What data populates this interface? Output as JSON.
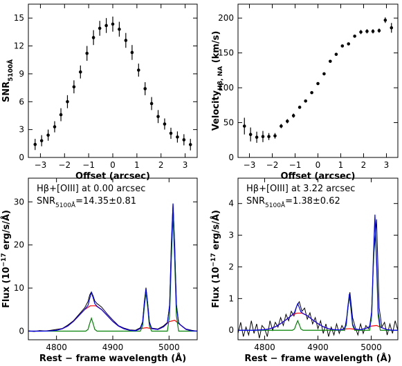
{
  "chart_data": [
    {
      "type": "scatter",
      "color": "#000000",
      "x": [
        -3.22,
        -2.95,
        -2.68,
        -2.41,
        -2.15,
        -1.88,
        -1.61,
        -1.34,
        -1.07,
        -0.8,
        -0.54,
        -0.27,
        0,
        0.27,
        0.54,
        0.8,
        1.07,
        1.34,
        1.61,
        1.88,
        2.15,
        2.41,
        2.68,
        2.95,
        3.22
      ],
      "values": [
        1.4,
        1.8,
        2.4,
        3.3,
        4.6,
        6.0,
        7.6,
        9.2,
        11.2,
        12.9,
        13.9,
        14.2,
        14.35,
        13.8,
        12.6,
        11.3,
        9.4,
        7.4,
        5.8,
        4.4,
        3.6,
        2.6,
        2.2,
        1.9,
        1.38
      ],
      "errors": [
        0.6,
        0.6,
        0.6,
        0.6,
        0.7,
        0.7,
        0.7,
        0.7,
        0.8,
        0.8,
        0.8,
        0.8,
        0.81,
        0.8,
        0.8,
        0.8,
        0.7,
        0.7,
        0.7,
        0.7,
        0.6,
        0.6,
        0.6,
        0.6,
        0.62
      ],
      "xlim": [
        -3.5,
        3.5
      ],
      "ylim": [
        0,
        16.5
      ],
      "xticks": [
        {
          "value": -3,
          "label": "−3"
        },
        {
          "value": -2,
          "label": "−2"
        },
        {
          "value": -1,
          "label": "−1"
        },
        0,
        1,
        2,
        3
      ],
      "yticks": [
        0,
        3,
        6,
        9,
        12,
        15
      ],
      "xlabel": "Offset (arcsec)",
      "ylabel": [
        {
          "text": "SNR"
        },
        {
          "text": "5100Å",
          "style": "sub"
        }
      ]
    },
    {
      "type": "scatter",
      "color": "#000000",
      "x": [
        -3.22,
        -2.95,
        -2.68,
        -2.41,
        -2.15,
        -1.88,
        -1.61,
        -1.34,
        -1.07,
        -0.8,
        -0.54,
        -0.27,
        0,
        0.27,
        0.54,
        0.8,
        1.07,
        1.34,
        1.61,
        1.88,
        2.15,
        2.41,
        2.68,
        2.95,
        3.22
      ],
      "values": [
        45,
        33,
        29,
        30,
        30,
        31,
        45,
        52,
        60,
        72,
        81,
        93,
        106,
        120,
        138,
        148,
        160,
        163,
        174,
        180,
        181,
        181,
        182,
        197,
        186
      ],
      "errors": [
        12,
        10,
        8,
        8,
        5,
        4,
        3,
        3,
        3,
        2,
        2,
        2,
        2,
        2,
        2,
        2,
        2,
        2,
        2,
        3,
        3,
        3,
        3,
        4,
        7
      ],
      "xlim": [
        -3.5,
        3.5
      ],
      "ylim": [
        0,
        220
      ],
      "xticks": [
        {
          "value": -3,
          "label": "−3"
        },
        {
          "value": -2,
          "label": "−2"
        },
        {
          "value": -1,
          "label": "−1"
        },
        0,
        1,
        2,
        3
      ],
      "yticks": [
        0,
        50,
        100,
        150,
        200
      ],
      "xlabel": "Offset (arcsec)",
      "ylabel": [
        {
          "text": "Velocity"
        },
        {
          "text": "Hβ, NA",
          "style": "sub"
        },
        {
          "text": " (km/s)"
        }
      ]
    },
    {
      "type": "line",
      "xlim": [
        4750,
        5050
      ],
      "ylim": [
        -2,
        35.5
      ],
      "xticks": [
        4800,
        4900,
        5000
      ],
      "yticks": [
        0,
        10,
        20,
        30
      ],
      "xlabel": "Rest − frame wavelength (Å)",
      "ylabel": [
        {
          "text": "Flux (10"
        },
        {
          "text": "−17",
          "style": "super"
        },
        {
          "text": " erg/s/Å)"
        }
      ],
      "annotations": [
        [
          {
            "text": "Hβ+[OIII] at 0.00 arcsec"
          }
        ],
        [
          {
            "text": "SNR"
          },
          {
            "text": "5100Å",
            "style": "sub"
          },
          {
            "text": "=14.35±0.81"
          }
        ]
      ],
      "series": [
        {
          "color": "#000000",
          "x": [
            4750,
            4760,
            4770,
            4780,
            4790,
            4800,
            4810,
            4820,
            4830,
            4840,
            4850,
            4856,
            4859,
            4862,
            4865,
            4868,
            4872,
            4880,
            4890,
            4900,
            4910,
            4920,
            4930,
            4940,
            4949,
            4953,
            4956,
            4959,
            4962,
            4965,
            4969,
            4980,
            4990,
            4997,
            5001,
            5004,
            5007,
            5010,
            5013,
            5017,
            5020,
            5030,
            5040,
            5050
          ],
          "values": [
            0.1,
            -0.1,
            0.15,
            0.05,
            0.2,
            0.4,
            0.6,
            1.4,
            2.4,
            3.9,
            5.4,
            6.9,
            8.4,
            9.1,
            8.2,
            7.0,
            6.4,
            5.6,
            4.0,
            2.6,
            1.3,
            0.7,
            0.3,
            0.2,
            0.8,
            2.2,
            6.8,
            10.1,
            6.6,
            2.2,
            0.7,
            0.5,
            1.2,
            2.0,
            6.2,
            20.5,
            29.6,
            20.0,
            6.4,
            2.0,
            1.5,
            0.5,
            0.2,
            0.0
          ]
        },
        {
          "color": "#ff0000",
          "x": [
            4750,
            4760,
            4770,
            4780,
            4790,
            4800,
            4810,
            4820,
            4830,
            4840,
            4850,
            4860,
            4870,
            4880,
            4890,
            4900,
            4910,
            4920,
            4930,
            4940,
            4950,
            4960,
            4970,
            4980,
            4990,
            5000,
            5010,
            5020,
            5030,
            5040,
            5050
          ],
          "values": [
            0,
            0,
            0,
            0.02,
            0.07,
            0.2,
            0.53,
            1.19,
            2.25,
            3.64,
            5.01,
            5.88,
            5.88,
            5.01,
            3.64,
            2.25,
            1.19,
            0.53,
            0.2,
            0.07,
            0.62,
            0.8,
            0.55,
            0.38,
            0.98,
            2.19,
            2.52,
            1.45,
            0.41,
            0.06,
            0.01
          ]
        },
        {
          "color": "#008000",
          "x": [
            4750,
            4852,
            4856,
            4859,
            4862,
            4865,
            4868,
            4872,
            4949,
            4953,
            4956,
            4959,
            4962,
            4965,
            4969,
            4997,
            5001,
            5004,
            5007,
            5010,
            5013,
            5017,
            5050
          ],
          "values": [
            0,
            0,
            0.4,
            1.8,
            3,
            1.8,
            0.4,
            0,
            0,
            1.2,
            5.5,
            9,
            5.5,
            1.2,
            0,
            0,
            3.6,
            16.4,
            27,
            16.4,
            3.6,
            0,
            0
          ]
        },
        {
          "color": "#0000ff",
          "x": [
            4750,
            4760,
            4770,
            4780,
            4790,
            4800,
            4810,
            4820,
            4830,
            4840,
            4850,
            4856,
            4859,
            4862,
            4865,
            4868,
            4872,
            4880,
            4890,
            4900,
            4910,
            4920,
            4930,
            4940,
            4949,
            4953,
            4956,
            4959,
            4962,
            4965,
            4969,
            4980,
            4990,
            4997,
            5001,
            5004,
            5007,
            5010,
            5013,
            5017,
            5020,
            5030,
            5040,
            5050
          ],
          "values": [
            0,
            0,
            0,
            0.02,
            0.07,
            0.2,
            0.53,
            1.19,
            2.25,
            3.64,
            5.01,
            6.0,
            7.6,
            8.96,
            7.8,
            6.4,
            5.77,
            5.01,
            3.64,
            2.25,
            1.19,
            0.53,
            0.2,
            0.07,
            0.59,
            1.9,
            6.3,
            9.8,
            6.3,
            1.9,
            0.57,
            0.38,
            0.98,
            1.84,
            5.9,
            19.0,
            29.6,
            19.0,
            5.9,
            1.84,
            1.45,
            0.41,
            0.06,
            0.01
          ]
        }
      ]
    },
    {
      "type": "line",
      "xlim": [
        4750,
        5050
      ],
      "ylim": [
        -0.3,
        4.8
      ],
      "xticks": [
        4800,
        4900,
        5000
      ],
      "yticks": [
        0,
        1,
        2,
        3,
        4
      ],
      "xlabel": "Rest − frame wavelength (Å)",
      "ylabel": [
        {
          "text": "Flux (10"
        },
        {
          "text": "−17",
          "style": "super"
        },
        {
          "text": " erg/s/Å)"
        }
      ],
      "annotations": [
        [
          {
            "text": "Hβ+[OIII] at 3.22 arcsec"
          }
        ],
        [
          {
            "text": "SNR"
          },
          {
            "text": "5100Å",
            "style": "sub"
          },
          {
            "text": "=1.38±0.62"
          }
        ]
      ],
      "series": [
        {
          "color": "#000000",
          "x": [
            4750,
            4755,
            4760,
            4765,
            4770,
            4775,
            4780,
            4785,
            4790,
            4795,
            4800,
            4805,
            4810,
            4815,
            4820,
            4825,
            4830,
            4835,
            4840,
            4845,
            4850,
            4855,
            4860,
            4865,
            4870,
            4875,
            4880,
            4885,
            4890,
            4895,
            4900,
            4905,
            4910,
            4915,
            4920,
            4925,
            4930,
            4935,
            4940,
            4945,
            4950,
            4955,
            4960,
            4965,
            4970,
            4975,
            4980,
            4985,
            4990,
            4995,
            5000,
            5005,
            5010,
            5015,
            5020,
            5025,
            5030,
            5035,
            5040,
            5045,
            5050
          ],
          "values": [
            -0.1,
            0.25,
            -0.2,
            0.1,
            -0.15,
            0.3,
            -0.1,
            0.2,
            -0.25,
            0.15,
            0.05,
            -0.2,
            0.3,
            0.0,
            0.25,
            0.1,
            0.4,
            0.15,
            0.5,
            0.3,
            0.6,
            0.45,
            0.75,
            0.9,
            0.6,
            0.7,
            0.35,
            0.55,
            0.2,
            0.4,
            0.05,
            0.3,
            -0.1,
            0.2,
            -0.2,
            0.1,
            -0.15,
            0.2,
            -0.1,
            0.15,
            0.0,
            0.5,
            1.2,
            0.4,
            0.1,
            -0.15,
            0.2,
            -0.1,
            0.15,
            0.05,
            0.3,
            2.4,
            3.5,
            0.7,
            0.1,
            0.25,
            -0.15,
            0.2,
            -0.1,
            0.3,
            0.0
          ]
        },
        {
          "color": "#ff0000",
          "x": [
            4750,
            4760,
            4770,
            4780,
            4790,
            4800,
            4810,
            4820,
            4830,
            4840,
            4850,
            4860,
            4870,
            4880,
            4890,
            4900,
            4910,
            4920,
            4930,
            4940,
            4950,
            4960,
            4970,
            4980,
            4990,
            5000,
            5010,
            5020,
            5030,
            5040,
            5050
          ],
          "values": [
            0,
            0,
            0,
            0,
            0.01,
            0.02,
            0.05,
            0.11,
            0.21,
            0.33,
            0.46,
            0.54,
            0.54,
            0.46,
            0.33,
            0.21,
            0.11,
            0.05,
            0.02,
            0.01,
            0.04,
            0.05,
            0.03,
            0.02,
            0.06,
            0.13,
            0.15,
            0.08,
            0.02,
            0,
            0
          ]
        },
        {
          "color": "#008000",
          "x": [
            4750,
            4852,
            4856,
            4859,
            4862,
            4865,
            4868,
            4872,
            4949,
            4953,
            4956,
            4959,
            4962,
            4965,
            4969,
            4997,
            5001,
            5004,
            5007,
            5010,
            5013,
            5017,
            5050
          ],
          "values": [
            0,
            0,
            0.04,
            0.18,
            0.3,
            0.18,
            0.04,
            0,
            0,
            0.15,
            0.67,
            1.1,
            0.67,
            0.15,
            0,
            0,
            0.47,
            2.12,
            3.5,
            2.12,
            0.47,
            0,
            0
          ]
        },
        {
          "color": "#0000ff",
          "x": [
            4750,
            4760,
            4770,
            4780,
            4790,
            4800,
            4810,
            4820,
            4830,
            4840,
            4850,
            4856,
            4859,
            4862,
            4865,
            4868,
            4872,
            4880,
            4890,
            4900,
            4910,
            4920,
            4930,
            4940,
            4949,
            4953,
            4956,
            4959,
            4962,
            4965,
            4969,
            4980,
            4990,
            4997,
            5001,
            5004,
            5007,
            5010,
            5013,
            5017,
            5020,
            5030,
            5040,
            5050
          ],
          "values": [
            0,
            0,
            0,
            0,
            0.01,
            0.02,
            0.05,
            0.11,
            0.21,
            0.33,
            0.46,
            0.56,
            0.71,
            0.84,
            0.72,
            0.58,
            0.53,
            0.46,
            0.33,
            0.21,
            0.11,
            0.05,
            0.02,
            0.01,
            0.04,
            0.2,
            0.72,
            1.15,
            0.72,
            0.2,
            0.04,
            0.02,
            0.06,
            0.11,
            0.6,
            2.27,
            3.65,
            2.27,
            0.6,
            0.11,
            0.08,
            0.02,
            0,
            0
          ]
        }
      ]
    }
  ]
}
